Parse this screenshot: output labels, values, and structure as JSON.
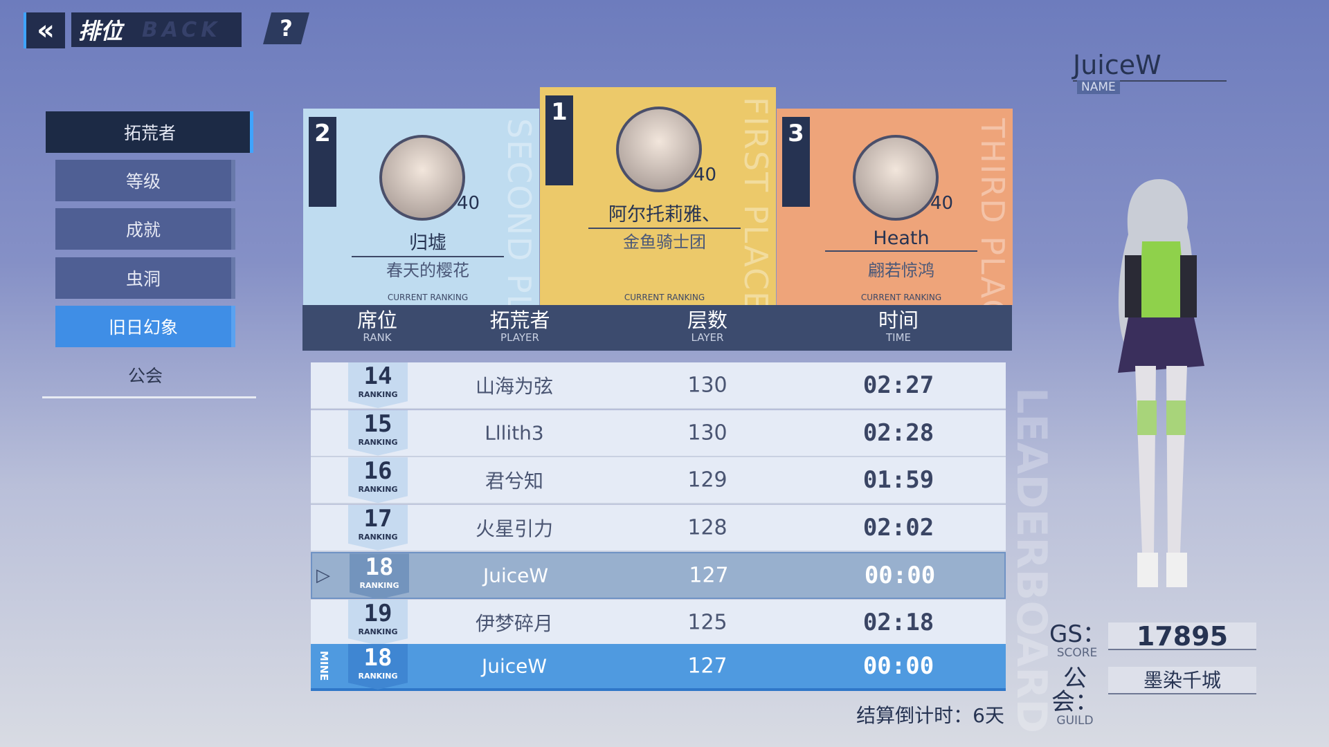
{
  "header": {
    "title": "排位",
    "back_watermark": "BACK",
    "help_label": "?"
  },
  "sidebar": {
    "items": [
      {
        "label": "拓荒者",
        "state": "active"
      },
      {
        "label": "等级"
      },
      {
        "label": "成就"
      },
      {
        "label": "虫洞"
      },
      {
        "label": "旧日幻象",
        "state": "selected"
      },
      {
        "label": "公会"
      }
    ]
  },
  "podium": [
    {
      "rank": "2",
      "place_label": "SECOND PLACE",
      "name": "归墟",
      "guild": "春天的樱花",
      "level": "40",
      "caption": "CURRENT RANKING",
      "color": "#bfdcf0"
    },
    {
      "rank": "1",
      "place_label": "FIRST PLACE",
      "name": "阿尔托莉雅、",
      "guild": "金鱼骑士团",
      "level": "40",
      "caption": "CURRENT RANKING",
      "color": "#ecc96a"
    },
    {
      "rank": "3",
      "place_label": "THIRD PLACE",
      "name": "Heath",
      "guild": "翩若惊鸿",
      "level": "40",
      "caption": "CURRENT RANKING",
      "color": "#eea47a"
    }
  ],
  "table": {
    "columns": [
      {
        "zh": "席位",
        "en": "RANK"
      },
      {
        "zh": "拓荒者",
        "en": "PLAYER"
      },
      {
        "zh": "层数",
        "en": "LAYER"
      },
      {
        "zh": "时间",
        "en": "TIME"
      }
    ],
    "ranking_label": "RANKING",
    "rows": [
      {
        "rank": "14",
        "player": "山海为弦",
        "layer": "130",
        "time": "02:27"
      },
      {
        "rank": "15",
        "player": "Lllith3",
        "layer": "130",
        "time": "02:28"
      },
      {
        "rank": "16",
        "player": "君兮知",
        "layer": "129",
        "time": "01:59"
      },
      {
        "rank": "17",
        "player": "火星引力",
        "layer": "128",
        "time": "02:02"
      },
      {
        "rank": "18",
        "player": "JuiceW",
        "layer": "127",
        "time": "00:00",
        "highlight": true
      },
      {
        "rank": "19",
        "player": "伊梦碎月",
        "layer": "125",
        "time": "02:18"
      }
    ],
    "mine": {
      "tag": "MINE",
      "rank": "18",
      "player": "JuiceW",
      "layer": "127",
      "time": "00:00"
    }
  },
  "countdown": "结算倒计时：6天",
  "profile": {
    "name": "JuiceW",
    "name_label": "NAME",
    "gs_label": "GS：",
    "gs_sub": "SCORE",
    "gs_value": "17895",
    "guild_label": "公会：",
    "guild_sub": "GUILD",
    "guild_value": "墨染千城"
  },
  "watermark": "LEADERBOARD"
}
